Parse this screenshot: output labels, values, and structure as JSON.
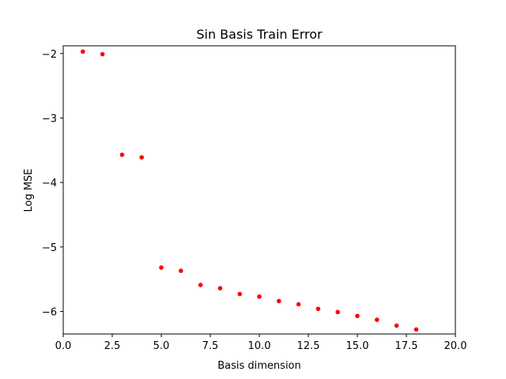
{
  "chart_data": {
    "type": "scatter",
    "title": "Sin Basis Train Error",
    "xlabel": "Basis dimension",
    "ylabel": "Log MSE",
    "xlim": [
      0,
      20
    ],
    "ylim": [
      -6.35,
      -1.88
    ],
    "x_ticks": [
      {
        "value": 0,
        "label": "0.0"
      },
      {
        "value": 2.5,
        "label": "2.5"
      },
      {
        "value": 5,
        "label": "5.0"
      },
      {
        "value": 7.5,
        "label": "7.5"
      },
      {
        "value": 10,
        "label": "10.0"
      },
      {
        "value": 12.5,
        "label": "12.5"
      },
      {
        "value": 15,
        "label": "15.0"
      },
      {
        "value": 17.5,
        "label": "17.5"
      },
      {
        "value": 20,
        "label": "20.0"
      }
    ],
    "y_ticks": [
      {
        "value": -2,
        "label": "−2"
      },
      {
        "value": -3,
        "label": "−3"
      },
      {
        "value": -4,
        "label": "−4"
      },
      {
        "value": -5,
        "label": "−5"
      },
      {
        "value": -6,
        "label": "−6"
      }
    ],
    "grid": false,
    "marker_color": "#ff0000",
    "series": [
      {
        "x": [
          1,
          2,
          3,
          4,
          5,
          6,
          7,
          8,
          9,
          10,
          11,
          12,
          13,
          14,
          15,
          16,
          17,
          18
        ],
        "y": [
          -1.97,
          -2.01,
          -3.57,
          -3.61,
          -5.32,
          -5.37,
          -5.59,
          -5.64,
          -5.73,
          -5.77,
          -5.84,
          -5.89,
          -5.96,
          -6.01,
          -6.07,
          -6.13,
          -6.22,
          -6.28
        ]
      }
    ]
  }
}
